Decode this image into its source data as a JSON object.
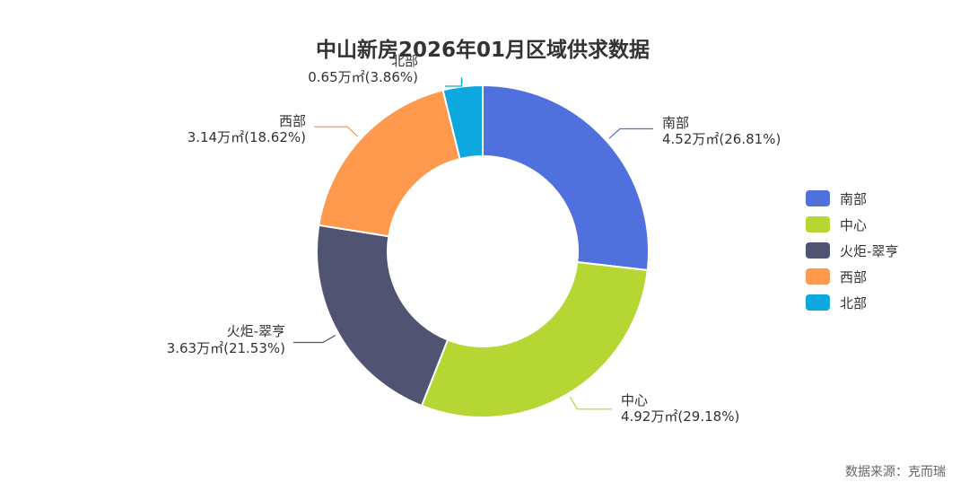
{
  "chart_data": {
    "type": "pie",
    "variant": "donut",
    "title": "中山新房2026年01月区域供求数据",
    "unit": "万㎡",
    "series": [
      {
        "name": "南部",
        "value": 4.52,
        "percent": "26.81%",
        "color": "#5070DD",
        "label_line1": "南部",
        "label_line2": "4.52万㎡(26.81%)"
      },
      {
        "name": "中心",
        "value": 4.92,
        "percent": "29.18%",
        "color": "#B6D634",
        "label_line1": "中心",
        "label_line2": "4.92万㎡(29.18%)"
      },
      {
        "name": "火炬-翠亨",
        "value": 3.63,
        "percent": "21.53%",
        "color": "#505372",
        "label_line1": "火炬-翠亨",
        "label_line2": "3.63万㎡(21.53%)"
      },
      {
        "name": "西部",
        "value": 3.14,
        "percent": "18.62%",
        "color": "#FF994D",
        "label_line1": "西部",
        "label_line2": "3.14万㎡(18.62%)"
      },
      {
        "name": "北部",
        "value": 0.65,
        "percent": "3.86%",
        "color": "#0CA8DF",
        "label_line1": "北部",
        "label_line2": "0.65万㎡(3.86%)"
      }
    ],
    "legend": {
      "position": "right",
      "items": [
        "南部",
        "中心",
        "火炬-翠亨",
        "西部",
        "北部"
      ]
    },
    "source": "数据来源：克而瑞"
  }
}
